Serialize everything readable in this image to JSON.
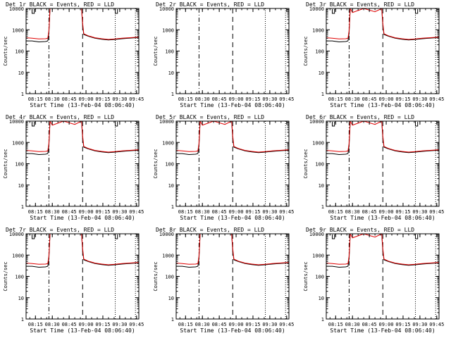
{
  "figure": {
    "xlabel": "Start Time (13-Feb-04 08:06:40)",
    "ylabel": "Counts/sec"
  },
  "chart_data": [
    {
      "type": "line",
      "title": "Det 1r BLACK = Events, RED = LLD",
      "xlabel": "Start Time (13-Feb-04 08:06:40)",
      "ylabel": "Counts/sec",
      "x_ticks": [
        "08:15",
        "08:30",
        "08:45",
        "09:00",
        "09:15",
        "09:30",
        "09:45"
      ],
      "y_ticks": [
        "1",
        "10",
        "100",
        "1000",
        "10000"
      ],
      "yscale": "log",
      "ylim": [
        1,
        10000
      ],
      "xlim": [
        "08:06:40",
        "09:47"
      ],
      "series": [
        {
          "color": "#000000",
          "key": "events"
        },
        {
          "color": "#e00000",
          "key": "lld"
        }
      ],
      "markers": {
        "dashdot": [
          "08:27"
        ],
        "dashed": [
          "08:57"
        ],
        "dotted": [
          "09:26",
          "09:44"
        ]
      },
      "square_notch": true,
      "dip_lld": false
    },
    {
      "type": "line",
      "title": "Det 2r BLACK = Events, RED = LLD",
      "xlabel": "Start Time (13-Feb-04 08:06:40)",
      "ylabel": "Counts/sec",
      "x_ticks": [
        "08:15",
        "08:30",
        "08:45",
        "09:00",
        "09:15",
        "09:30",
        "09:45"
      ],
      "y_ticks": [
        "1",
        "10",
        "100",
        "1000",
        "10000"
      ],
      "yscale": "log",
      "ylim": [
        1,
        10000
      ],
      "xlim": [
        "08:06:40",
        "09:47"
      ],
      "series": [],
      "markers": {
        "dashdot": [
          "08:27"
        ],
        "dashed": [
          "08:57"
        ],
        "dotted": [
          "09:26",
          "09:44"
        ]
      },
      "square_notch": false,
      "dip_lld": false
    },
    {
      "type": "line",
      "title": "Det 3r BLACK = Events, RED = LLD",
      "xlabel": "Start Time (13-Feb-04 08:06:40)",
      "ylabel": "Counts/sec",
      "x_ticks": [
        "08:15",
        "08:30",
        "08:45",
        "09:00",
        "09:15",
        "09:30",
        "09:45"
      ],
      "y_ticks": [
        "1",
        "10",
        "100",
        "1000",
        "10000"
      ],
      "yscale": "log",
      "ylim": [
        1,
        10000
      ],
      "xlim": [
        "08:06:40",
        "09:47"
      ],
      "series": [
        {
          "color": "#000000",
          "key": "events"
        },
        {
          "color": "#e00000",
          "key": "lld"
        }
      ],
      "markers": {
        "dashdot": [
          "08:27"
        ],
        "dashed": [
          "08:57"
        ],
        "dotted": [
          "09:26",
          "09:44"
        ]
      },
      "square_notch": true,
      "dip_lld": true
    },
    {
      "type": "line",
      "title": "Det 4r BLACK = Events, RED = LLD",
      "xlabel": "Start Time (13-Feb-04 08:06:40)",
      "ylabel": "Counts/sec",
      "x_ticks": [
        "08:15",
        "08:30",
        "08:45",
        "09:00",
        "09:15",
        "09:30",
        "09:45"
      ],
      "y_ticks": [
        "1",
        "10",
        "100",
        "1000",
        "10000"
      ],
      "yscale": "log",
      "ylim": [
        1,
        10000
      ],
      "xlim": [
        "08:06:40",
        "09:47"
      ],
      "series": [
        {
          "color": "#000000",
          "key": "events"
        },
        {
          "color": "#e00000",
          "key": "lld"
        }
      ],
      "markers": {
        "dashdot": [
          "08:27"
        ],
        "dashed": [
          "08:57"
        ],
        "dotted": [
          "09:26",
          "09:44"
        ]
      },
      "square_notch": true,
      "dip_lld": true
    },
    {
      "type": "line",
      "title": "Det 5r BLACK = Events, RED = LLD",
      "xlabel": "Start Time (13-Feb-04 08:06:40)",
      "ylabel": "Counts/sec",
      "x_ticks": [
        "08:15",
        "08:30",
        "08:45",
        "09:00",
        "09:15",
        "09:30",
        "09:45"
      ],
      "y_ticks": [
        "1",
        "10",
        "100",
        "1000",
        "10000"
      ],
      "yscale": "log",
      "ylim": [
        1,
        10000
      ],
      "xlim": [
        "08:06:40",
        "09:47"
      ],
      "series": [
        {
          "color": "#000000",
          "key": "events"
        },
        {
          "color": "#e00000",
          "key": "lld"
        }
      ],
      "markers": {
        "dashdot": [
          "08:27"
        ],
        "dashed": [
          "08:57"
        ],
        "dotted": [
          "09:26",
          "09:44"
        ]
      },
      "square_notch": false,
      "dip_lld": true
    },
    {
      "type": "line",
      "title": "Det 6r BLACK = Events, RED = LLD",
      "xlabel": "Start Time (13-Feb-04 08:06:40)",
      "ylabel": "Counts/sec",
      "x_ticks": [
        "08:15",
        "08:30",
        "08:45",
        "09:00",
        "09:15",
        "09:30",
        "09:45"
      ],
      "y_ticks": [
        "1",
        "10",
        "100",
        "1000",
        "10000"
      ],
      "yscale": "log",
      "ylim": [
        1,
        10000
      ],
      "xlim": [
        "08:06:40",
        "09:47"
      ],
      "series": [
        {
          "color": "#000000",
          "key": "events"
        },
        {
          "color": "#e00000",
          "key": "lld"
        }
      ],
      "markers": {
        "dashdot": [
          "08:27"
        ],
        "dashed": [
          "08:57"
        ],
        "dotted": [
          "09:26",
          "09:44"
        ]
      },
      "square_notch": true,
      "dip_lld": true
    },
    {
      "type": "line",
      "title": "Det 7r BLACK = Events, RED = LLD",
      "xlabel": "Start Time (13-Feb-04 08:06:40)",
      "ylabel": "Counts/sec",
      "x_ticks": [
        "08:15",
        "08:30",
        "08:45",
        "09:00",
        "09:15",
        "09:30",
        "09:45"
      ],
      "y_ticks": [
        "1",
        "10",
        "100",
        "1000",
        "10000"
      ],
      "yscale": "log",
      "ylim": [
        1,
        10000
      ],
      "xlim": [
        "08:06:40",
        "09:47"
      ],
      "series": [
        {
          "color": "#000000",
          "key": "events"
        },
        {
          "color": "#e00000",
          "key": "lld"
        }
      ],
      "markers": {
        "dashdot": [
          "08:27"
        ],
        "dashed": [
          "08:57"
        ],
        "dotted": [
          "09:26",
          "09:44"
        ]
      },
      "square_notch": true,
      "dip_lld": false
    },
    {
      "type": "line",
      "title": "Det 8r BLACK = Events, RED = LLD",
      "xlabel": "Start Time (13-Feb-04 08:06:40)",
      "ylabel": "Counts/sec",
      "x_ticks": [
        "08:15",
        "08:30",
        "08:45",
        "09:00",
        "09:15",
        "09:30",
        "09:45"
      ],
      "y_ticks": [
        "1",
        "10",
        "100",
        "1000",
        "10000"
      ],
      "yscale": "log",
      "ylim": [
        1,
        10000
      ],
      "xlim": [
        "08:06:40",
        "09:47"
      ],
      "series": [
        {
          "color": "#000000",
          "key": "events"
        },
        {
          "color": "#e00000",
          "key": "lld"
        }
      ],
      "markers": {
        "dashdot": [
          "08:27"
        ],
        "dashed": [
          "08:57"
        ],
        "dotted": [
          "09:26",
          "09:44"
        ]
      },
      "square_notch": false,
      "dip_lld": false
    },
    {
      "type": "line",
      "title": "Det 9r BLACK = Events, RED = LLD",
      "xlabel": "Start Time (13-Feb-04 08:06:40)",
      "ylabel": "Counts/sec",
      "x_ticks": [
        "08:15",
        "08:30",
        "08:45",
        "09:00",
        "09:15",
        "09:30",
        "09:45"
      ],
      "y_ticks": [
        "1",
        "10",
        "100",
        "1000",
        "10000"
      ],
      "yscale": "log",
      "ylim": [
        1,
        10000
      ],
      "xlim": [
        "08:06:40",
        "09:47"
      ],
      "series": [
        {
          "color": "#000000",
          "key": "events"
        },
        {
          "color": "#e00000",
          "key": "lld"
        }
      ],
      "markers": {
        "dashdot": [
          "08:27"
        ],
        "dashed": [
          "08:57"
        ],
        "dotted": [
          "09:26",
          "09:44"
        ]
      },
      "square_notch": true,
      "dip_lld": true
    }
  ],
  "profile": {
    "times": [
      "08:06:40",
      "08:12",
      "08:18",
      "08:24",
      "08:26",
      "08:27",
      "08:28",
      "08:30",
      "08:40",
      "08:50",
      "08:56",
      "08:57",
      "08:58",
      "09:02",
      "09:08",
      "09:14",
      "09:20",
      "09:26",
      "09:32",
      "09:38",
      "09:44",
      "09:47"
    ],
    "events": [
      300,
      300,
      270,
      280,
      300,
      700,
      10000,
      10000,
      10000,
      10000,
      10000,
      1500,
      600,
      500,
      400,
      360,
      330,
      350,
      380,
      400,
      420,
      430
    ],
    "lld": [
      420,
      400,
      370,
      380,
      400,
      900,
      10000,
      10000,
      10000,
      10000,
      10000,
      2000,
      650,
      520,
      420,
      380,
      350,
      370,
      400,
      420,
      440,
      450
    ]
  }
}
